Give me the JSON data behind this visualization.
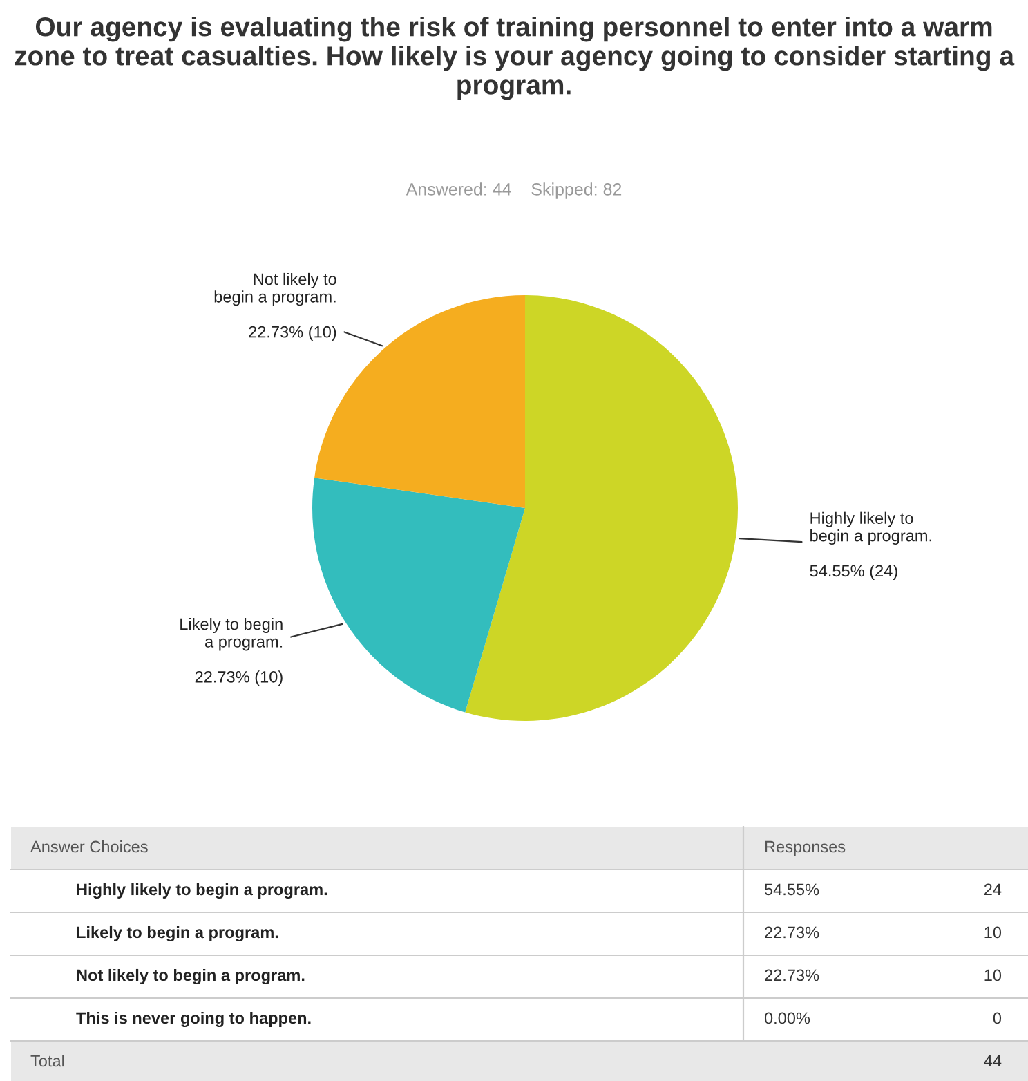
{
  "chart_data": {
    "type": "pie",
    "title": "Our agency is evaluating the risk of training personnel to enter into a warm zone to treat casualties. How likely is your agency going to consider starting a program.",
    "subtitle": "Answered: 44    Skipped: 82",
    "categories": [
      "Highly likely to begin a program.",
      "Likely to begin a program.",
      "Not likely to begin a program.",
      "This is never going to happen."
    ],
    "values": [
      24,
      10,
      10,
      0
    ],
    "colors": [
      "#cdd626",
      "#33bdbd",
      "#f5ad1f",
      "#9b59b6"
    ],
    "value_labels": [
      "54.55% (24)",
      "22.73% (10)",
      "22.73% (10)",
      null
    ],
    "data_labels": true,
    "annotations": [
      "Answer Choices",
      "Responses",
      "54.55%",
      "22.73%",
      "22.73%",
      "0.00%",
      "Total",
      "44",
      "24",
      "10",
      "10",
      "0"
    ]
  }
}
